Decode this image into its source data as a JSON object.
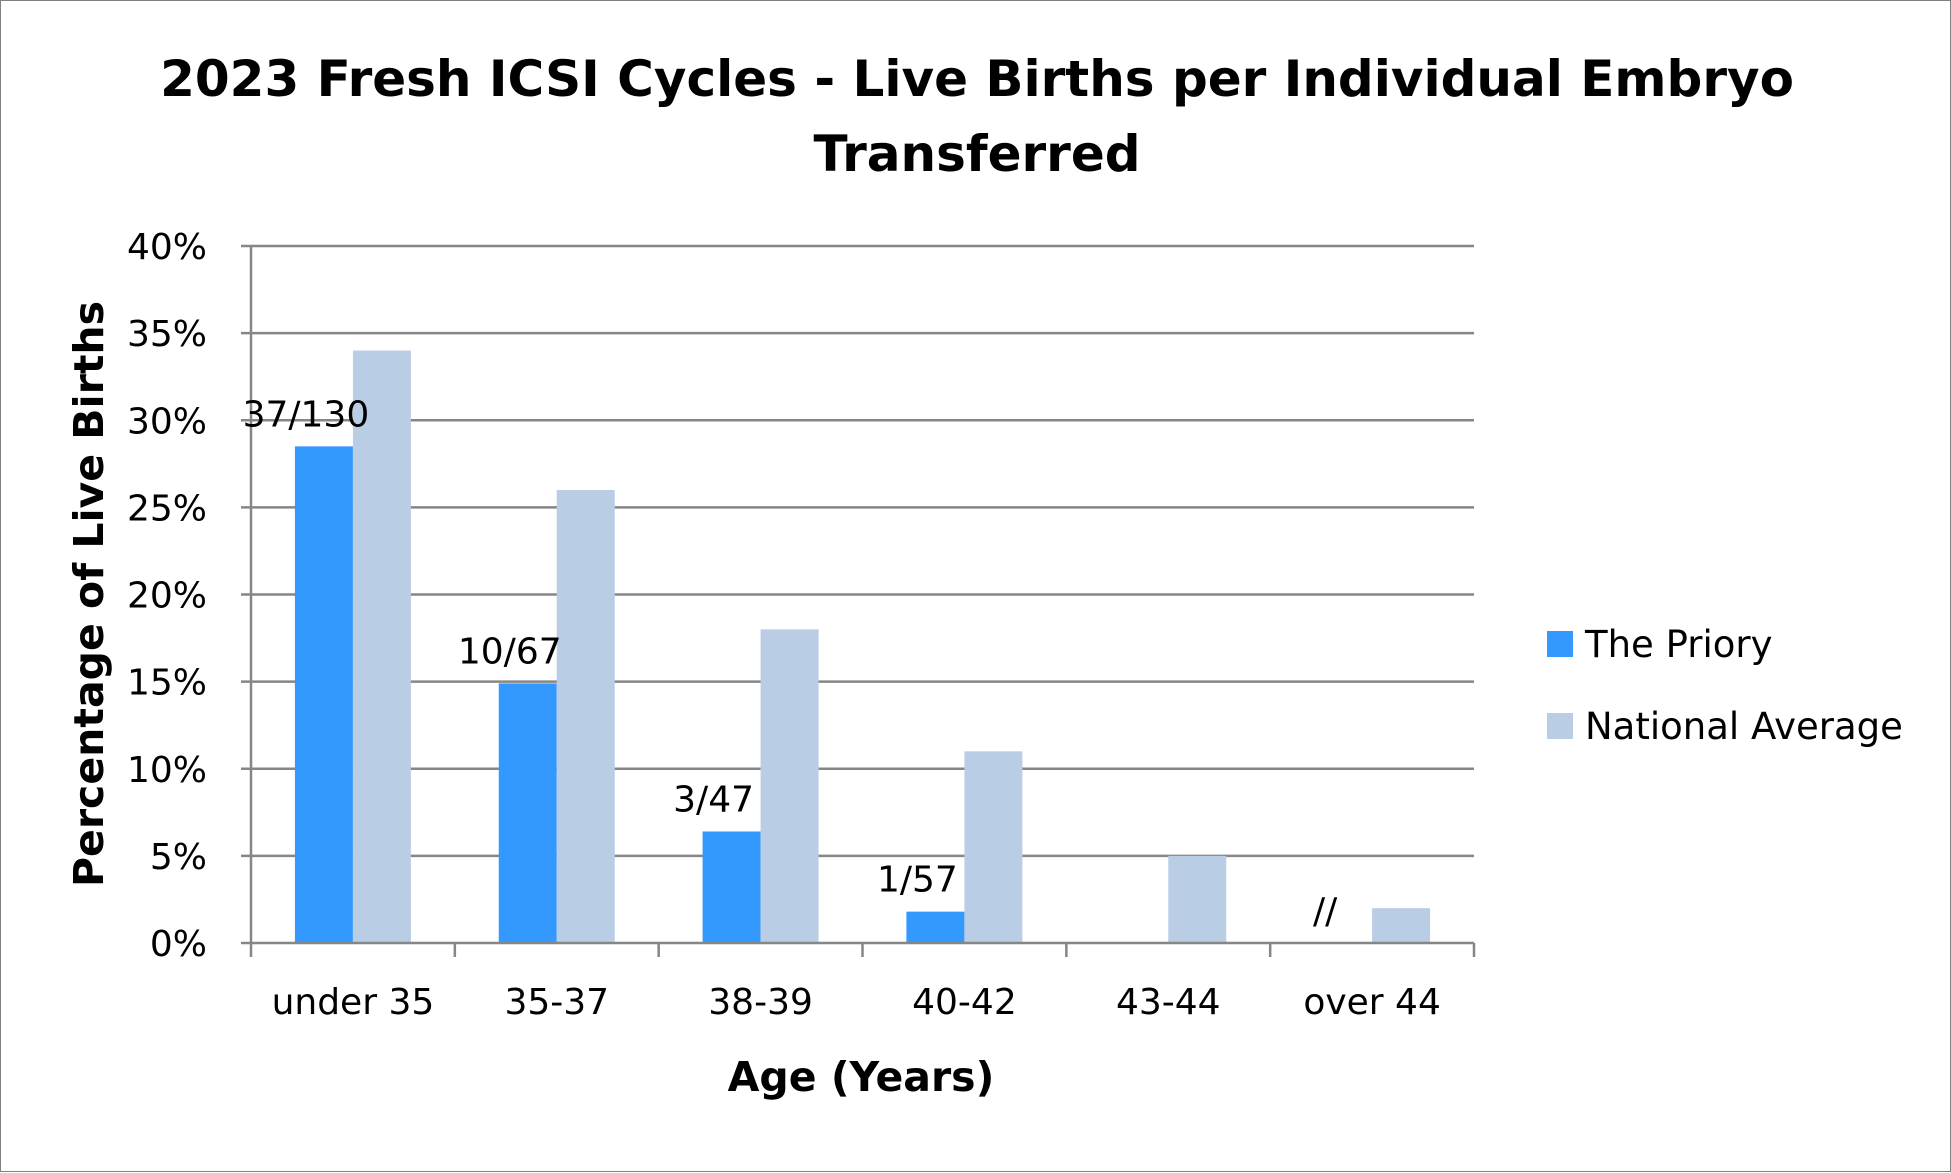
{
  "chart_data": {
    "type": "bar",
    "title_lines": [
      "2023 Fresh ICSI Cycles - Live Births per Individual Embryo",
      "Transferred"
    ],
    "xlabel": "Age (Years)",
    "ylabel": "Percentage of Live Births",
    "categories": [
      "under 35",
      "35-37",
      "38-39",
      "40-42",
      "43-44",
      "over 44"
    ],
    "ylim": [
      0,
      0.4
    ],
    "yticks": [
      0,
      0.05,
      0.1,
      0.15,
      0.2,
      0.25,
      0.3,
      0.35,
      0.4
    ],
    "ytick_labels": [
      "0%",
      "5%",
      "10%",
      "15%",
      "20%",
      "25%",
      "30%",
      "35%",
      "40%"
    ],
    "grid": true,
    "legend_position": "right",
    "series": [
      {
        "name": "The Priory",
        "color": "#3399ff",
        "values": [
          0.285,
          0.149,
          0.064,
          0.018,
          0,
          0
        ],
        "labels": [
          "37/130",
          "10/67",
          "3/47",
          "1/57",
          "",
          "//"
        ]
      },
      {
        "name": "National Average",
        "color": "#b9cde5",
        "values": [
          0.34,
          0.26,
          0.18,
          0.11,
          0.05,
          0.02
        ],
        "labels": [
          "",
          "",
          "",
          "",
          "",
          ""
        ]
      }
    ]
  }
}
